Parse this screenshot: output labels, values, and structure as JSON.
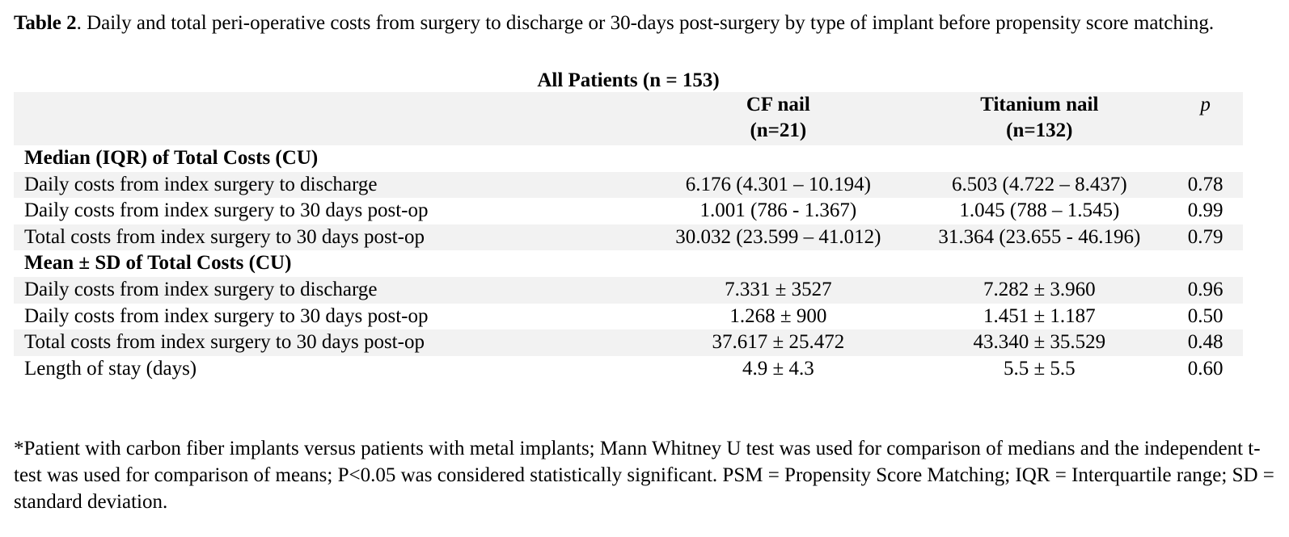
{
  "caption": {
    "label": "Table 2",
    "text": ". Daily and total peri-operative costs from surgery to discharge or 30-days post-surgery by type of implant before propensity score matching."
  },
  "group_title": "All Patients (n = 153)",
  "header": {
    "label": "",
    "cf_line1": "CF nail",
    "cf_line2": "(n=21)",
    "ti_line1": "Titanium nail",
    "ti_line2": "(n=132)",
    "p": "p"
  },
  "sections": [
    {
      "title": "Median (IQR) of Total Costs (CU)",
      "rows": [
        {
          "label": "Daily costs from index surgery to discharge",
          "cf": "6.176 (4.301 – 10.194)",
          "ti": "6.503 (4.722 – 8.437)",
          "p": "0.78"
        },
        {
          "label": "Daily costs from index surgery to 30 days post-op",
          "cf": "1.001 (786 - 1.367)",
          "ti": "1.045 (788 – 1.545)",
          "p": "0.99"
        },
        {
          "label": "Total costs from index surgery to 30 days post-op",
          "cf": "30.032 (23.599 – 41.012)",
          "ti": "31.364 (23.655 - 46.196)",
          "p": "0.79"
        }
      ]
    },
    {
      "title": "Mean ± SD of Total Costs (CU)",
      "rows": [
        {
          "label": "Daily costs from index surgery to discharge",
          "cf": "7.331 ± 3527",
          "ti": "7.282 ± 3.960",
          "p": "0.96"
        },
        {
          "label": "Daily costs from index surgery to 30 days post-op",
          "cf": "1.268 ± 900",
          "ti": "1.451 ± 1.187",
          "p": "0.50"
        },
        {
          "label": "Total costs from index surgery to 30 days post-op",
          "cf": "37.617 ± 25.472",
          "ti": "43.340 ± 35.529",
          "p": "0.48"
        },
        {
          "label": "Length of stay (days)",
          "cf": "4.9 ± 4.3",
          "ti": "5.5 ± 5.5",
          "p": "0.60"
        }
      ]
    }
  ],
  "footnote": "*Patient with carbon fiber implants versus patients with metal implants; Mann Whitney U test was used for comparison of medians and the independent t-test was used for comparison of means; P<0.05 was considered statistically significant. PSM = Propensity Score Matching; IQR = Interquartile range; SD = standard deviation."
}
